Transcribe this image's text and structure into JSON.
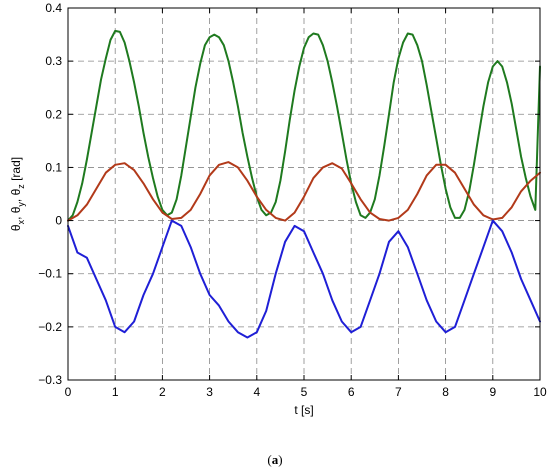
{
  "caption": {
    "open": "(",
    "letter": "a",
    "close": ")"
  },
  "chart_data": {
    "type": "line",
    "title": "",
    "xlabel": "t [s]",
    "ylabel_parts": [
      "θ",
      "x",
      ", θ",
      "y",
      ", θ",
      "z",
      " [rad]"
    ],
    "xlim": [
      0,
      10
    ],
    "ylim": [
      -0.3,
      0.4
    ],
    "xticks": [
      0,
      1,
      2,
      3,
      4,
      5,
      6,
      7,
      8,
      9,
      10
    ],
    "yticks": [
      -0.3,
      -0.2,
      -0.1,
      0,
      0.1,
      0.2,
      0.3,
      0.4
    ],
    "xtick_labels": [
      "0",
      "1",
      "2",
      "3",
      "4",
      "5",
      "6",
      "7",
      "8",
      "9",
      "10"
    ],
    "ytick_labels": [
      "−0.3",
      "−0.2",
      "−0.1",
      "0",
      "0.1",
      "0.2",
      "0.3",
      "0.4"
    ],
    "grid": true,
    "grid_style": "dashed",
    "colors": {
      "green": "#1f7a1f",
      "red": "#b23a1a",
      "blue": "#1f1fd6",
      "grid": "#888888"
    },
    "series": [
      {
        "color": "green",
        "x": [
          0,
          0.1,
          0.2,
          0.3,
          0.4,
          0.5,
          0.6,
          0.7,
          0.8,
          0.9,
          1.0,
          1.1,
          1.2,
          1.3,
          1.4,
          1.5,
          1.6,
          1.7,
          1.8,
          1.9,
          2.0,
          2.1,
          2.2,
          2.3,
          2.4,
          2.5,
          2.6,
          2.7,
          2.8,
          2.9,
          3.0,
          3.1,
          3.2,
          3.3,
          3.4,
          3.5,
          3.6,
          3.7,
          3.8,
          3.9,
          4.0,
          4.1,
          4.2,
          4.3,
          4.4,
          4.5,
          4.6,
          4.7,
          4.8,
          4.9,
          5.0,
          5.1,
          5.2,
          5.3,
          5.4,
          5.5,
          5.6,
          5.7,
          5.8,
          5.9,
          6.0,
          6.1,
          6.2,
          6.3,
          6.4,
          6.5,
          6.6,
          6.7,
          6.8,
          6.9,
          7.0,
          7.1,
          7.2,
          7.3,
          7.4,
          7.5,
          7.6,
          7.7,
          7.8,
          7.9,
          8.0,
          8.1,
          8.2,
          8.3,
          8.4,
          8.5,
          8.6,
          8.7,
          8.8,
          8.9,
          9.0,
          9.1,
          9.2,
          9.3,
          9.4,
          9.5,
          9.6,
          9.7,
          9.8,
          9.9,
          10.0
        ],
        "y": [
          0.0,
          0.01,
          0.035,
          0.07,
          0.115,
          0.165,
          0.215,
          0.265,
          0.305,
          0.34,
          0.357,
          0.355,
          0.335,
          0.3,
          0.26,
          0.215,
          0.165,
          0.12,
          0.08,
          0.045,
          0.02,
          0.01,
          0.015,
          0.04,
          0.085,
          0.14,
          0.195,
          0.25,
          0.295,
          0.33,
          0.345,
          0.35,
          0.345,
          0.33,
          0.3,
          0.26,
          0.215,
          0.165,
          0.12,
          0.08,
          0.045,
          0.02,
          0.01,
          0.015,
          0.035,
          0.075,
          0.13,
          0.19,
          0.245,
          0.29,
          0.325,
          0.345,
          0.352,
          0.35,
          0.33,
          0.3,
          0.26,
          0.215,
          0.165,
          0.115,
          0.07,
          0.035,
          0.01,
          0.005,
          0.015,
          0.04,
          0.085,
          0.14,
          0.2,
          0.26,
          0.305,
          0.335,
          0.352,
          0.35,
          0.33,
          0.3,
          0.255,
          0.205,
          0.155,
          0.105,
          0.06,
          0.025,
          0.005,
          0.005,
          0.02,
          0.055,
          0.105,
          0.16,
          0.215,
          0.26,
          0.29,
          0.3,
          0.29,
          0.26,
          0.22,
          0.17,
          0.12,
          0.08,
          0.045,
          0.02,
          0.29
        ]
      },
      {
        "color": "red",
        "x": [
          0,
          0.2,
          0.4,
          0.6,
          0.8,
          1.0,
          1.2,
          1.4,
          1.6,
          1.8,
          2.0,
          2.2,
          2.4,
          2.6,
          2.8,
          3.0,
          3.2,
          3.4,
          3.6,
          3.8,
          4.0,
          4.2,
          4.4,
          4.6,
          4.8,
          5.0,
          5.2,
          5.4,
          5.6,
          5.8,
          6.0,
          6.2,
          6.4,
          6.6,
          6.8,
          7.0,
          7.2,
          7.4,
          7.6,
          7.8,
          8.0,
          8.2,
          8.4,
          8.6,
          8.8,
          9.0,
          9.2,
          9.4,
          9.6,
          9.8,
          10.0
        ],
        "y": [
          0.0,
          0.01,
          0.03,
          0.06,
          0.09,
          0.105,
          0.108,
          0.095,
          0.07,
          0.04,
          0.015,
          0.003,
          0.005,
          0.02,
          0.05,
          0.085,
          0.105,
          0.11,
          0.1,
          0.075,
          0.045,
          0.02,
          0.005,
          0.0,
          0.015,
          0.045,
          0.08,
          0.1,
          0.108,
          0.098,
          0.07,
          0.04,
          0.015,
          0.003,
          0.0,
          0.005,
          0.02,
          0.05,
          0.085,
          0.105,
          0.105,
          0.09,
          0.06,
          0.03,
          0.01,
          0.002,
          0.005,
          0.025,
          0.055,
          0.075,
          0.09
        ]
      },
      {
        "color": "blue",
        "x": [
          0,
          0.2,
          0.4,
          0.6,
          0.8,
          1.0,
          1.2,
          1.4,
          1.6,
          1.8,
          2.0,
          2.2,
          2.4,
          2.6,
          2.8,
          3.0,
          3.2,
          3.4,
          3.6,
          3.8,
          4.0,
          4.2,
          4.4,
          4.6,
          4.8,
          5.0,
          5.2,
          5.4,
          5.6,
          5.8,
          6.0,
          6.2,
          6.4,
          6.6,
          6.8,
          7.0,
          7.2,
          7.4,
          7.6,
          7.8,
          8.0,
          8.2,
          8.4,
          8.6,
          8.8,
          9.0,
          9.2,
          9.4,
          9.6,
          9.8,
          10.0
        ],
        "y": [
          -0.01,
          -0.06,
          -0.07,
          -0.11,
          -0.15,
          -0.2,
          -0.21,
          -0.19,
          -0.14,
          -0.1,
          -0.05,
          0.0,
          -0.01,
          -0.05,
          -0.1,
          -0.14,
          -0.16,
          -0.19,
          -0.21,
          -0.22,
          -0.21,
          -0.17,
          -0.1,
          -0.04,
          -0.01,
          -0.02,
          -0.06,
          -0.1,
          -0.15,
          -0.19,
          -0.21,
          -0.2,
          -0.15,
          -0.1,
          -0.04,
          -0.02,
          -0.05,
          -0.1,
          -0.15,
          -0.19,
          -0.21,
          -0.2,
          -0.15,
          -0.1,
          -0.05,
          0.0,
          -0.02,
          -0.06,
          -0.11,
          -0.15,
          -0.19
        ]
      }
    ]
  }
}
